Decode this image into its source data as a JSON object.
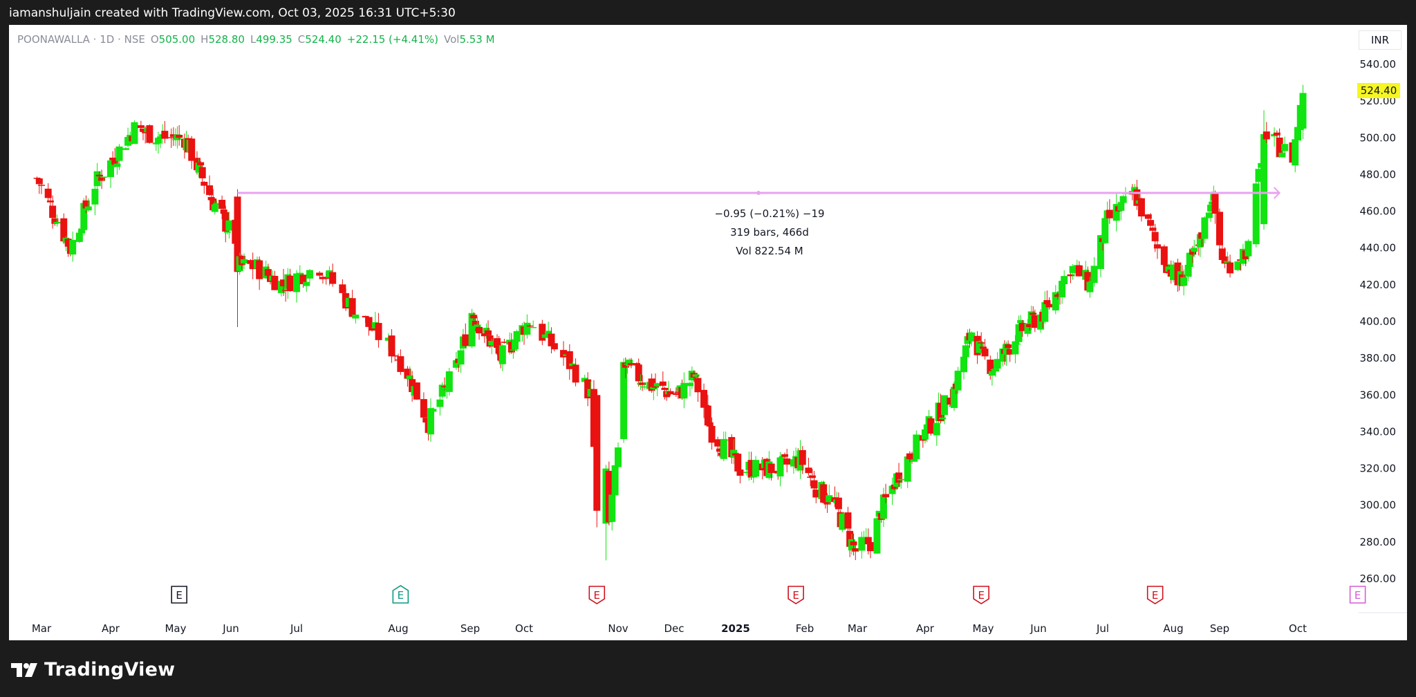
{
  "banner": {
    "text": "iamanshuljain created with TradingView.com, Oct 03, 2025 16:31 UTC+5:30"
  },
  "header": {
    "symbol_text": "POONAWALLA · 1D · NSE",
    "open_label": "O",
    "open_value": "505.00",
    "high_label": "H",
    "high_value": "528.80",
    "low_label": "L",
    "low_value": "499.35",
    "close_label": "C",
    "close_value": "524.40",
    "change": "+22.15 (+4.41%)",
    "volume_label": "Vol",
    "volume_value": "5.53 M"
  },
  "currency": "INR",
  "last_price_label": "524.40",
  "footer": {
    "logo_text": "TradingView"
  },
  "colors": {
    "up": "#11e411",
    "down": "#ea1111",
    "measure": "#e9a2f1",
    "last_price_bg": "#f6f621"
  },
  "chart_data": {
    "type": "candlestick",
    "y_axis": {
      "min": 260,
      "max": 540,
      "ticks": [
        260,
        280,
        300,
        320,
        340,
        360,
        380,
        400,
        420,
        440,
        460,
        480,
        500,
        520,
        540
      ],
      "tick_labels": [
        "260.00",
        "280.00",
        "300.00",
        "320.00",
        "340.00",
        "360.00",
        "380.00",
        "400.00",
        "420.00",
        "440.00",
        "460.00",
        "480.00",
        "500.00",
        "520.00",
        "540.00"
      ]
    },
    "x_axis": {
      "labels": [
        "Mar",
        "Apr",
        "May",
        "Jun",
        "Jul",
        "Aug",
        "Sep",
        "Oct",
        "Nov",
        "Dec",
        "2025",
        "Feb",
        "Mar",
        "Apr",
        "May",
        "Jun",
        "Jul",
        "Aug",
        "Sep",
        "Oct"
      ],
      "bold_label": "2025"
    },
    "price_path": [
      [
        "2024-02-28",
        478
      ],
      [
        "2024-03-14",
        440
      ],
      [
        "2024-03-25",
        475
      ],
      [
        "2024-04-12",
        505
      ],
      [
        "2024-04-25",
        500
      ],
      [
        "2024-05-06",
        500
      ],
      [
        "2024-05-22",
        465
      ],
      [
        "2024-06-03",
        445
      ],
      [
        "2024-06-04",
        430
      ],
      [
        "2024-06-12",
        430
      ],
      [
        "2024-06-25",
        420
      ],
      [
        "2024-07-08",
        430
      ],
      [
        "2024-07-19",
        405
      ],
      [
        "2024-07-30",
        385
      ],
      [
        "2024-08-05",
        372
      ],
      [
        "2024-08-14",
        345
      ],
      [
        "2024-08-26",
        375
      ],
      [
        "2024-09-02",
        405
      ],
      [
        "2024-09-18",
        380
      ],
      [
        "2024-10-03",
        400
      ],
      [
        "2024-10-17",
        375
      ],
      [
        "2024-10-23",
        360
      ],
      [
        "2024-10-25",
        295
      ],
      [
        "2024-10-29",
        290
      ],
      [
        "2024-11-01",
        330
      ],
      [
        "2024-11-05",
        375
      ],
      [
        "2024-11-19",
        365
      ],
      [
        "2024-12-03",
        360
      ],
      [
        "2024-12-11",
        370
      ],
      [
        "2024-12-20",
        340
      ],
      [
        "2025-01-03",
        320
      ],
      [
        "2025-01-20",
        320
      ],
      [
        "2025-01-30",
        325
      ],
      [
        "2025-02-07",
        310
      ],
      [
        "2025-02-17",
        300
      ],
      [
        "2025-02-28",
        275
      ],
      [
        "2025-03-07",
        280
      ],
      [
        "2025-03-13",
        300
      ],
      [
        "2025-03-21",
        320
      ],
      [
        "2025-04-01",
        340
      ],
      [
        "2025-04-15",
        360
      ],
      [
        "2025-04-25",
        395
      ],
      [
        "2025-05-01",
        380
      ],
      [
        "2025-05-07",
        375
      ],
      [
        "2025-05-22",
        395
      ],
      [
        "2025-06-04",
        405
      ],
      [
        "2025-06-16",
        430
      ],
      [
        "2025-06-25",
        420
      ],
      [
        "2025-07-03",
        455
      ],
      [
        "2025-07-15",
        470
      ],
      [
        "2025-07-25",
        440
      ],
      [
        "2025-08-04",
        420
      ],
      [
        "2025-08-18",
        440
      ],
      [
        "2025-08-27",
        470
      ],
      [
        "2025-09-03",
        430
      ],
      [
        "2025-09-12",
        440
      ],
      [
        "2025-09-18",
        500
      ],
      [
        "2025-09-24",
        495
      ],
      [
        "2025-09-29",
        490
      ],
      [
        "2025-10-03",
        524.4
      ]
    ],
    "big_candles": [
      {
        "date": "2024-06-04",
        "open": 468,
        "close": 427,
        "high": 472,
        "low": 397
      },
      {
        "date": "2024-10-25",
        "open": 360,
        "close": 297,
        "high": 362,
        "low": 288
      },
      {
        "date": "2024-10-28",
        "open": 290,
        "close": 320,
        "high": 322,
        "low": 270
      },
      {
        "date": "2024-11-04",
        "open": 336,
        "close": 378,
        "high": 380,
        "low": 334
      },
      {
        "date": "2025-09-18",
        "open": 453,
        "close": 502,
        "high": 515,
        "low": 450
      }
    ],
    "measure": {
      "start_date": "2024-06-04",
      "end_date": "2025-09-24",
      "price": 470,
      "line1": "−0.95 (−0.21%) −19",
      "line2": "319 bars, 466d",
      "line3": "Vol 822.54 M"
    },
    "events": [
      {
        "date": "2024-05-03",
        "type": "dark"
      },
      {
        "date": "2024-08-02",
        "type": "teal"
      },
      {
        "date": "2024-10-25",
        "type": "red"
      },
      {
        "date": "2025-01-28",
        "type": "red"
      },
      {
        "date": "2025-04-30",
        "type": "red"
      },
      {
        "date": "2025-07-24",
        "type": "red"
      },
      {
        "date": "2025-10-24",
        "type": "purple"
      }
    ],
    "event_label": "E",
    "last_price": 524.4
  }
}
